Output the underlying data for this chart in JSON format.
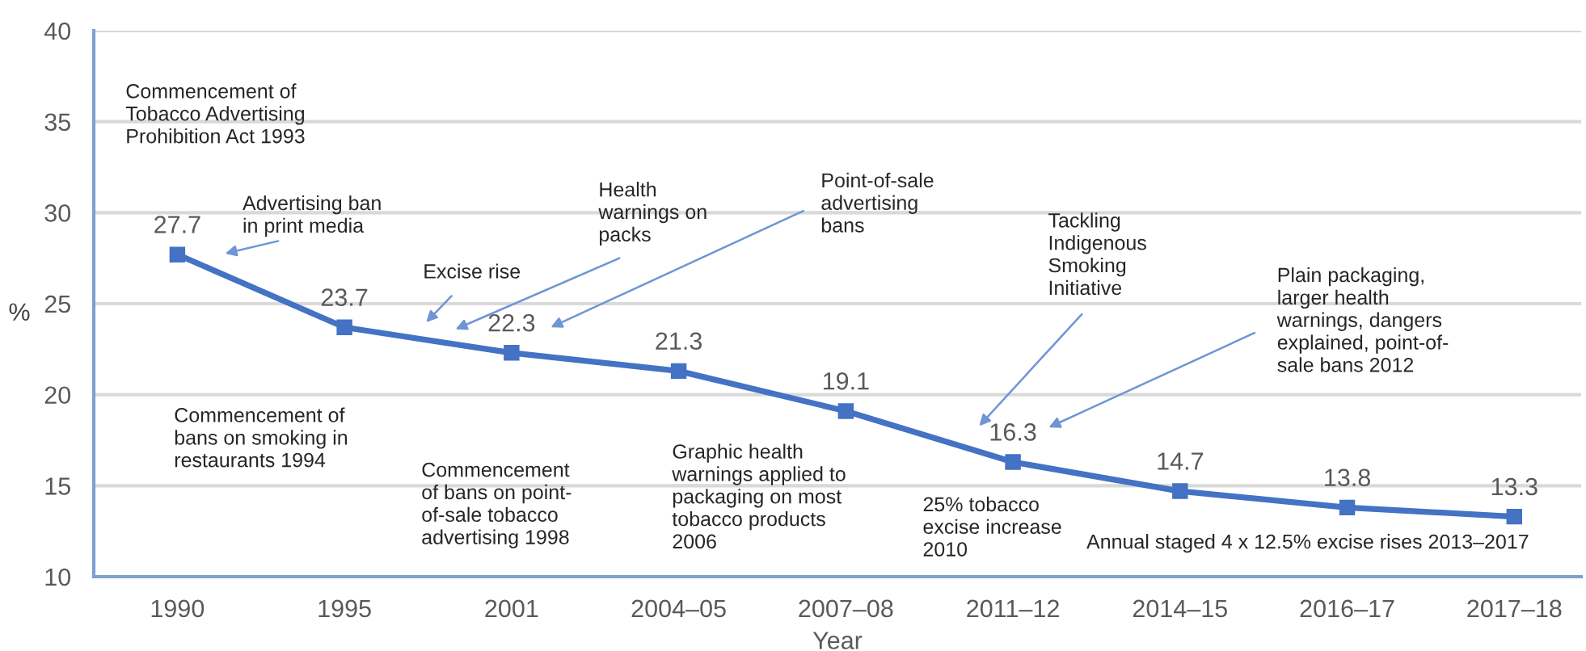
{
  "chart_data": {
    "type": "line",
    "xlabel": "Year",
    "ylabel": "%",
    "categories": [
      "1990",
      "1995",
      "2001",
      "2004–05",
      "2007–08",
      "2011–12",
      "2014–15",
      "2016–17",
      "2017–18"
    ],
    "series": [
      {
        "color": "#4472c4",
        "values": [
          27.7,
          23.7,
          22.3,
          21.3,
          19.1,
          16.3,
          14.7,
          13.8,
          13.3
        ]
      }
    ],
    "ylim": [
      10,
      40
    ],
    "yticks": [
      10,
      15,
      20,
      25,
      30,
      35,
      40
    ],
    "grid": "y",
    "marker": "square",
    "line_style": "solid",
    "data_labels": true,
    "annotations": [
      "Commencement of\nTobacco Advertising\nProhibition Act 1993",
      "Advertising ban\nin print media",
      "Excise rise",
      "Health\nwarnings on\npacks",
      "Point-of-sale\nadvertising\nbans",
      "Tackling\nIndigenous\nSmoking\nInitiative",
      "Plain packaging,\nlarger health\nwarnings, dangers\nexplained, point-of-\nsale bans 2012",
      "Commencement of\nbans on smoking in\nrestaurants 1994",
      "Commencement\nof bans on point-\nof-sale tobacco\nadvertising 1998",
      "Graphic health\nwarnings applied to\npackaging on most\ntobacco products\n2006",
      "25% tobacco\nexcise increase\n2010",
      "Annual staged 4 x 12.5% excise rises 2013–2017"
    ]
  }
}
